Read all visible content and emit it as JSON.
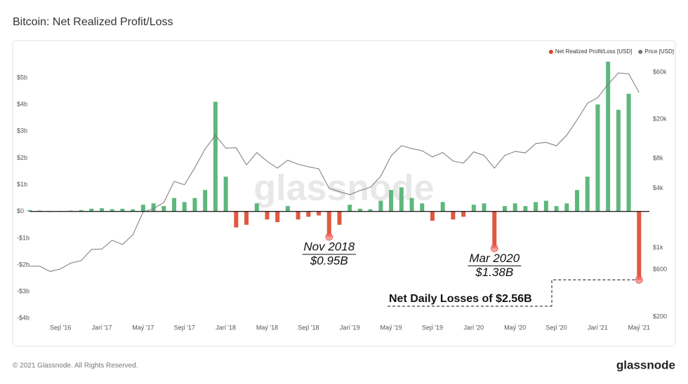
{
  "chart_data": {
    "type": "bar-line",
    "title": "Bitcoin: Net Realized Profit/Loss",
    "watermark": "glassnode",
    "footer": "© 2021 Glassnode. All Rights Reserved.",
    "logo": "glassnode",
    "x": [
      "2016-06",
      "2016-07",
      "2016-08",
      "2016-09",
      "2016-10",
      "2016-11",
      "2016-12",
      "2017-01",
      "2017-02",
      "2017-03",
      "2017-04",
      "2017-05",
      "2017-06",
      "2017-07",
      "2017-08",
      "2017-09",
      "2017-10",
      "2017-11",
      "2017-12",
      "2018-01",
      "2018-02",
      "2018-03",
      "2018-04",
      "2018-05",
      "2018-06",
      "2018-07",
      "2018-08",
      "2018-09",
      "2018-10",
      "2018-11",
      "2018-12",
      "2019-01",
      "2019-02",
      "2019-03",
      "2019-04",
      "2019-05",
      "2019-06",
      "2019-07",
      "2019-08",
      "2019-09",
      "2019-10",
      "2019-11",
      "2019-12",
      "2020-01",
      "2020-02",
      "2020-03",
      "2020-04",
      "2020-05",
      "2020-06",
      "2020-07",
      "2020-08",
      "2020-09",
      "2020-10",
      "2020-11",
      "2020-12",
      "2021-01",
      "2021-02",
      "2021-03",
      "2021-04",
      "2021-05"
    ],
    "xlim": [
      "2016-06",
      "2021-06"
    ],
    "xticks": [
      {
        "value": "2016-09",
        "label": "Sep '16"
      },
      {
        "value": "2017-01",
        "label": "Jan '17"
      },
      {
        "value": "2017-05",
        "label": "May '17"
      },
      {
        "value": "2017-09",
        "label": "Sep '17"
      },
      {
        "value": "2018-01",
        "label": "Jan '18"
      },
      {
        "value": "2018-05",
        "label": "May '18"
      },
      {
        "value": "2018-09",
        "label": "Sep '18"
      },
      {
        "value": "2019-01",
        "label": "Jan '19"
      },
      {
        "value": "2019-05",
        "label": "May '19"
      },
      {
        "value": "2019-09",
        "label": "Sep '19"
      },
      {
        "value": "2020-01",
        "label": "Jan '20"
      },
      {
        "value": "2020-05",
        "label": "May '20"
      },
      {
        "value": "2020-09",
        "label": "Sep '20"
      },
      {
        "value": "2021-01",
        "label": "Jan '21"
      },
      {
        "value": "2021-05",
        "label": "May '21"
      }
    ],
    "ylim": [
      -4.2,
      5.6
    ],
    "yticks": [
      {
        "value": 5,
        "label": "$5b"
      },
      {
        "value": 4,
        "label": "$4b"
      },
      {
        "value": 3,
        "label": "$3b"
      },
      {
        "value": 2,
        "label": "$2b"
      },
      {
        "value": 1,
        "label": "$1b"
      },
      {
        "value": 0,
        "label": "$0"
      },
      {
        "value": -1,
        "label": "-$1b"
      },
      {
        "value": -2,
        "label": "-$2b"
      },
      {
        "value": -3,
        "label": "-$3b"
      },
      {
        "value": -4,
        "label": "-$4b"
      }
    ],
    "y2lim": [
      170,
      76600
    ],
    "y2scale": "log",
    "y2ticks": [
      {
        "value": 60000,
        "label": "$60k"
      },
      {
        "value": 20000,
        "label": "$20k"
      },
      {
        "value": 8000,
        "label": "$8k"
      },
      {
        "value": 4000,
        "label": "$4k"
      },
      {
        "value": 1000,
        "label": "$1k"
      },
      {
        "value": 600,
        "label": "$600"
      },
      {
        "value": 200,
        "label": "$200"
      }
    ],
    "legend": "top-right",
    "series": [
      {
        "name": "Net Realized Profit/Loss [USD]",
        "color": "#e0452b",
        "positive_color": "#4caf6e",
        "values": [
          0.05,
          0.03,
          -0.02,
          0.02,
          0.03,
          0.05,
          0.1,
          0.12,
          0.08,
          0.1,
          0.08,
          0.25,
          0.3,
          0.2,
          0.5,
          0.35,
          0.5,
          0.8,
          4.1,
          1.3,
          -0.6,
          -0.5,
          0.3,
          -0.3,
          -0.4,
          0.2,
          -0.3,
          -0.2,
          -0.15,
          -0.95,
          -0.5,
          0.25,
          0.1,
          0.08,
          0.4,
          0.8,
          0.9,
          0.5,
          0.3,
          -0.35,
          0.35,
          -0.3,
          -0.2,
          0.25,
          0.3,
          -1.38,
          0.2,
          0.3,
          0.2,
          0.35,
          0.4,
          0.2,
          0.3,
          0.8,
          1.3,
          4.0,
          5.6,
          3.8,
          4.4,
          -2.56
        ]
      },
      {
        "name": "Price [USD]",
        "color": "#777777",
        "axis": "y2",
        "values": [
          650,
          650,
          575,
          610,
          700,
          740,
          960,
          970,
          1190,
          1080,
          1350,
          2300,
          2480,
          2870,
          4700,
          4340,
          6460,
          10000,
          13800,
          10200,
          10300,
          6900,
          9200,
          7500,
          6400,
          7700,
          7000,
          6600,
          6300,
          4000,
          3700,
          3450,
          3800,
          4100,
          5300,
          8500,
          10800,
          10100,
          9600,
          8300,
          9200,
          7550,
          7200,
          9350,
          8600,
          6400,
          8600,
          9450,
          9150,
          11350,
          11650,
          10780,
          13800,
          19700,
          29000,
          33100,
          45200,
          58800,
          57700,
          37300
        ]
      }
    ],
    "annotations": [
      "Nov 2018",
      "$0.95B",
      "Mar 2020",
      "$1.38B",
      "Net Daily Losses of $2.56B"
    ]
  }
}
